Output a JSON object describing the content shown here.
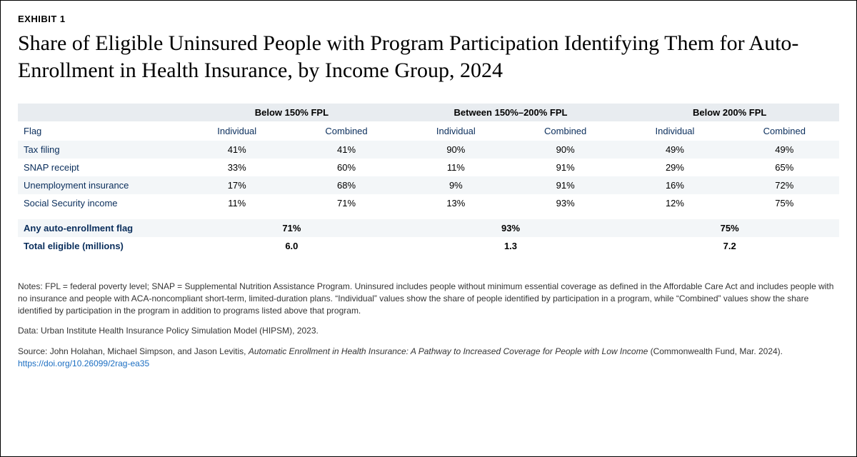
{
  "exhibit_label": "EXHIBIT 1",
  "title": "Share of Eligible Uninsured People with Program Participation Identifying Them for Auto-Enrollment in Health Insurance, by Income Group, 2024",
  "table": {
    "group_headers": [
      "Below 150% FPL",
      "Between 150%–200% FPL",
      "Below 200% FPL"
    ],
    "sub_headers": {
      "flag": "Flag",
      "individual": "Individual",
      "combined": "Combined"
    },
    "rows": [
      {
        "flag": "Tax filing",
        "g1_ind": "41%",
        "g1_comb": "41%",
        "g2_ind": "90%",
        "g2_comb": "90%",
        "g3_ind": "49%",
        "g3_comb": "49%"
      },
      {
        "flag": "SNAP receipt",
        "g1_ind": "33%",
        "g1_comb": "60%",
        "g2_ind": "11%",
        "g2_comb": "91%",
        "g3_ind": "29%",
        "g3_comb": "65%"
      },
      {
        "flag": "Unemployment insurance",
        "g1_ind": "17%",
        "g1_comb": "68%",
        "g2_ind": "9%",
        "g2_comb": "91%",
        "g3_ind": "16%",
        "g3_comb": "72%"
      },
      {
        "flag": "Social Security income",
        "g1_ind": "11%",
        "g1_comb": "71%",
        "g2_ind": "13%",
        "g2_comb": "93%",
        "g3_ind": "12%",
        "g3_comb": "75%"
      }
    ],
    "summary": [
      {
        "label": "Any auto-enrollment flag",
        "g1": "71%",
        "g2": "93%",
        "g3": "75%"
      },
      {
        "label": "Total eligible (millions)",
        "g1": "6.0",
        "g2": "1.3",
        "g3": "7.2"
      }
    ]
  },
  "notes": {
    "p1": "Notes: FPL = federal poverty level; SNAP = Supplemental Nutrition Assistance Program. Uninsured includes people without minimum essential coverage as defined in the Affordable Care Act and includes people with no insurance and people with ACA-noncompliant short-term, limited-duration plans. “Individual” values show the share of people identified by participation in a program, while “Combined” values show the share identified by participation in the program in addition to programs listed above that program.",
    "p2": "Data: Urban Institute Health Insurance Policy Simulation Model (HIPSM), 2023.",
    "p3_pre": "Source: John Holahan, Michael Simpson, and Jason Levitis, ",
    "p3_em": "Automatic Enrollment in Health Insurance: A Pathway to Increased Coverage for People with Low Income",
    "p3_post": " (Commonwealth Fund, Mar. 2024). ",
    "link_text": "https://doi.org/10.26099/2rag-ea35"
  },
  "colors": {
    "header_bg": "#e8ecf0",
    "row_bg": "#f3f6f8",
    "label_color": "#0a2e5c",
    "link_color": "#1b6ec2"
  }
}
